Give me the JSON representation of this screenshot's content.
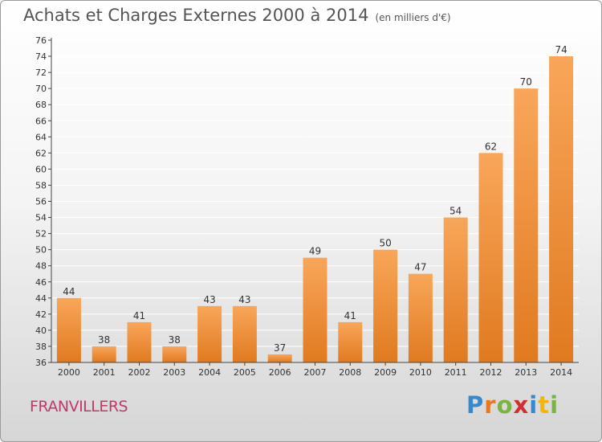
{
  "header": {
    "title": "Achats et Charges Externes 2000 à 2014",
    "unit": "(en milliers d'€)"
  },
  "footer": {
    "commune": "FRANVILLERS",
    "logo_letters": [
      "P",
      "r",
      "o",
      "x",
      "i",
      "t",
      "i"
    ],
    "logo_colors": [
      "#3a87c9",
      "#e87722",
      "#7cb342",
      "#d32f2f",
      "#3a87c9",
      "#f2b705",
      "#7cb342"
    ]
  },
  "colors": {
    "bar_light": "#f9a65a",
    "bar_dark": "#e07a20",
    "grid": "#ffffff",
    "axis": "#444444",
    "text": "#333333"
  },
  "chart_data": {
    "type": "bar",
    "title": "Achats et Charges Externes 2000 à 2014",
    "subtitle": "(en milliers d'€)",
    "categories": [
      "2000",
      "2001",
      "2002",
      "2003",
      "2004",
      "2005",
      "2006",
      "2007",
      "2008",
      "2009",
      "2010",
      "2011",
      "2012",
      "2013",
      "2014"
    ],
    "values": [
      44,
      38,
      41,
      38,
      43,
      43,
      37,
      49,
      41,
      50,
      47,
      54,
      62,
      70,
      74
    ],
    "ylim": [
      36,
      76
    ],
    "ytick_step": 2,
    "grid": true,
    "xlabel": "",
    "ylabel": ""
  }
}
